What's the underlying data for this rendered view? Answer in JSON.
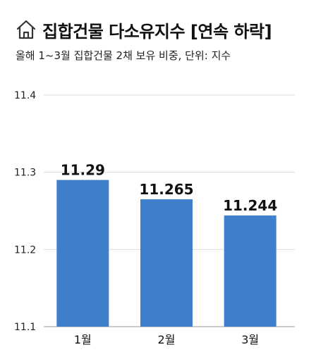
{
  "header": {
    "title": "집합건물 다소유지수 [연속 하락]",
    "subtitle": "올해 1~3월 집합건물 2채 보유 비중, 단위: 지수",
    "icon": "home-icon"
  },
  "colors": {
    "bar": "#3F7FCC",
    "grid": "#DDDDDD",
    "axis": "#999999"
  },
  "chart_data": {
    "type": "bar",
    "title": "집합건물 다소유지수 [연속 하락]",
    "subtitle": "올해 1~3월 집합건물 2채 보유 비중, 단위: 지수",
    "categories": [
      "1월",
      "2월",
      "3월"
    ],
    "values": [
      11.29,
      11.265,
      11.244
    ],
    "value_labels": [
      "11.29",
      "11.265",
      "11.244"
    ],
    "ylim": [
      11.1,
      11.4
    ],
    "yticks": [
      11.1,
      11.2,
      11.3,
      11.4
    ],
    "ytick_labels": [
      "11.1",
      "11.2",
      "11.3",
      "11.4"
    ],
    "grid": true,
    "legend": "none",
    "xlabel": "",
    "ylabel": ""
  }
}
